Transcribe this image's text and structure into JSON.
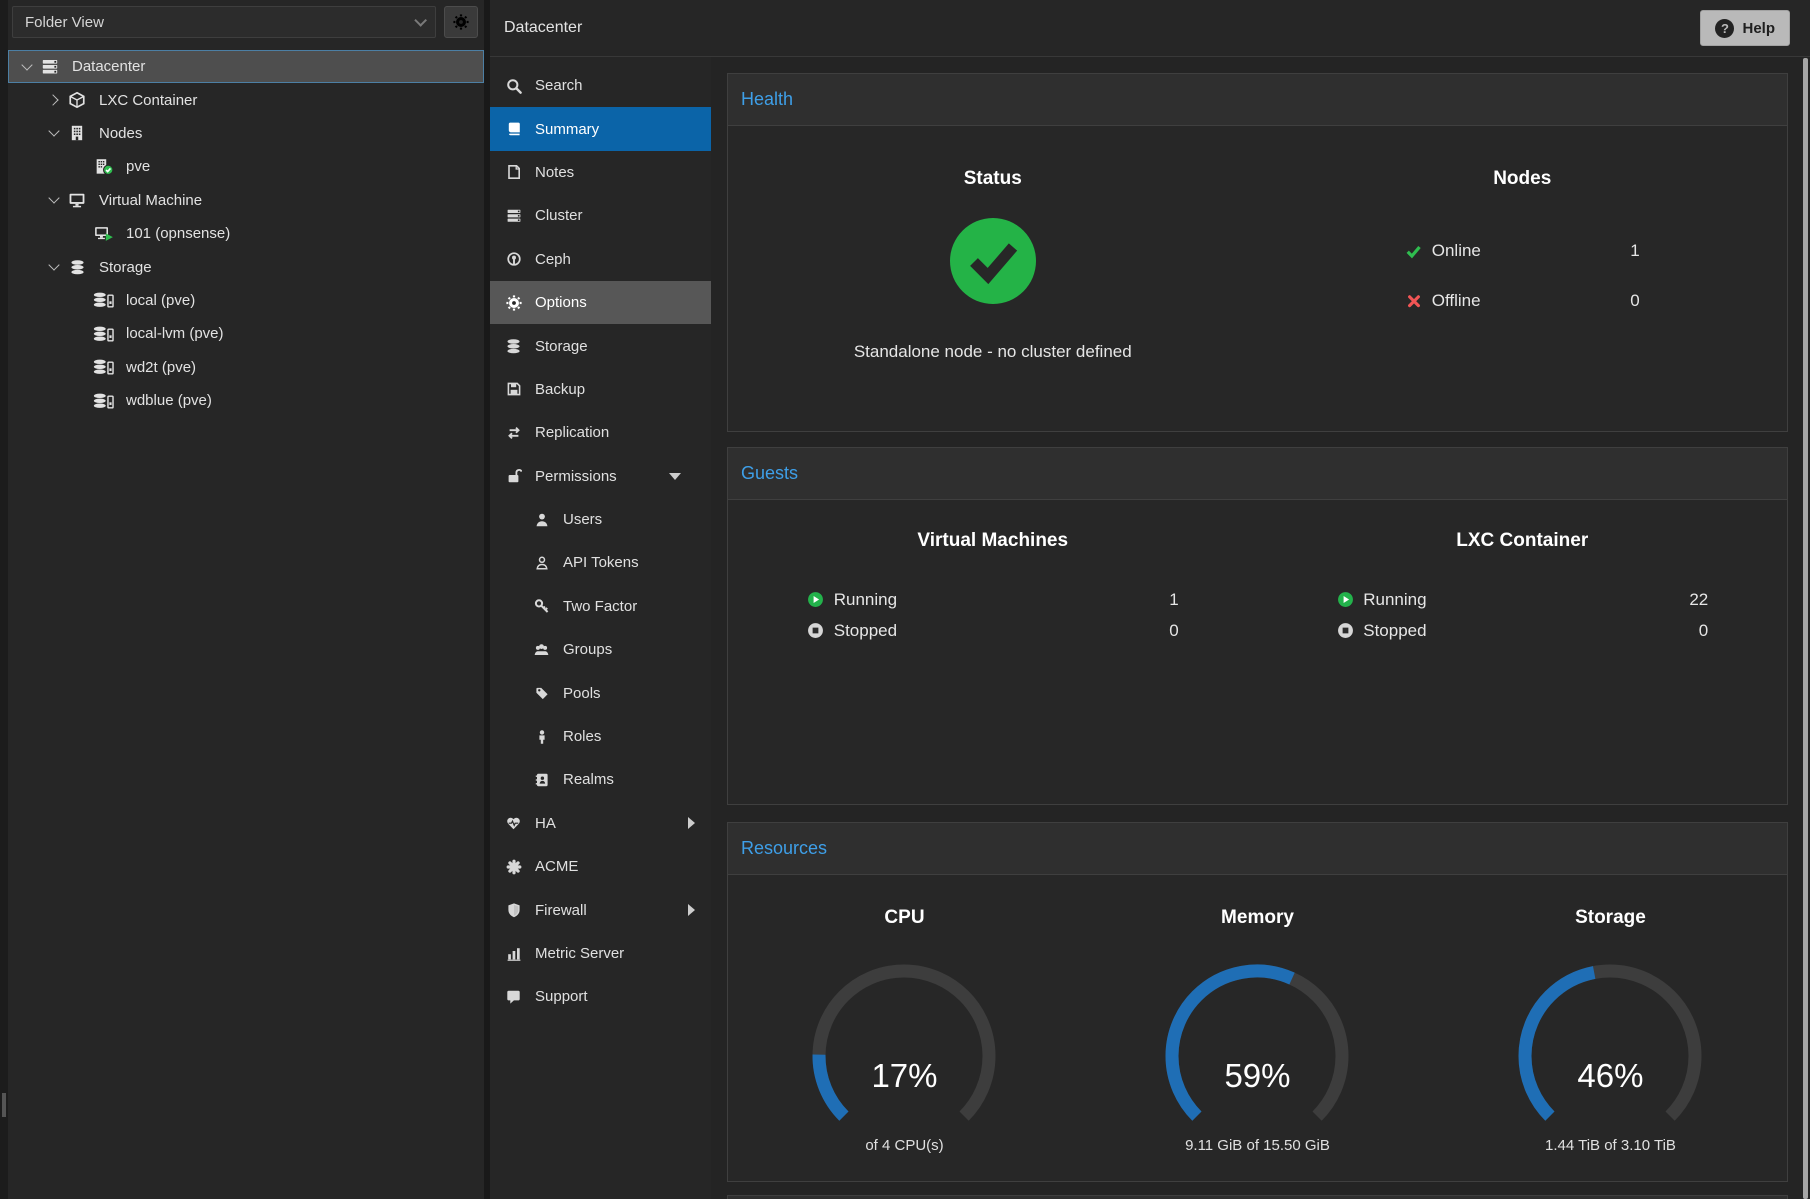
{
  "header": {
    "title": "Datacenter",
    "help_label": "Help"
  },
  "tree": {
    "view_label": "Folder View",
    "items": [
      {
        "label": "Datacenter",
        "icon": "datacenter-icon",
        "depth": 0,
        "caret": "down",
        "selected": true
      },
      {
        "label": "LXC Container",
        "icon": "lxc-cube-icon",
        "depth": 1,
        "caret": "right"
      },
      {
        "label": "Nodes",
        "icon": "building-icon",
        "depth": 1,
        "caret": "down"
      },
      {
        "label": "pve",
        "icon": "node-online-icon",
        "depth": 2
      },
      {
        "label": "Virtual Machine",
        "icon": "monitor-icon",
        "depth": 1,
        "caret": "down"
      },
      {
        "label": "101 (opnsense)",
        "icon": "vm-running-icon",
        "depth": 2
      },
      {
        "label": "Storage",
        "icon": "database-icon",
        "depth": 1,
        "caret": "down"
      },
      {
        "label": "local (pve)",
        "icon": "storage-drive-icon",
        "depth": 2
      },
      {
        "label": "local-lvm (pve)",
        "icon": "storage-drive-icon",
        "depth": 2
      },
      {
        "label": "wd2t (pve)",
        "icon": "storage-drive-icon",
        "depth": 2
      },
      {
        "label": "wdblue (pve)",
        "icon": "storage-drive-icon",
        "depth": 2
      }
    ]
  },
  "menu": {
    "items": [
      {
        "label": "Search",
        "icon": "search-icon"
      },
      {
        "label": "Summary",
        "icon": "book-icon",
        "selected": true
      },
      {
        "label": "Notes",
        "icon": "note-icon"
      },
      {
        "label": "Cluster",
        "icon": "cluster-icon"
      },
      {
        "label": "Ceph",
        "icon": "ceph-icon"
      },
      {
        "label": "Options",
        "icon": "gear-icon",
        "hover": true
      },
      {
        "label": "Storage",
        "icon": "database-icon"
      },
      {
        "label": "Backup",
        "icon": "backup-icon"
      },
      {
        "label": "Replication",
        "icon": "replication-icon"
      },
      {
        "label": "Permissions",
        "icon": "unlock-icon",
        "caret": "down"
      },
      {
        "label": "Users",
        "icon": "user-icon",
        "indent": true
      },
      {
        "label": "API Tokens",
        "icon": "user-outline-icon",
        "indent": true
      },
      {
        "label": "Two Factor",
        "icon": "key-icon",
        "indent": true
      },
      {
        "label": "Groups",
        "icon": "users-group-icon",
        "indent": true
      },
      {
        "label": "Pools",
        "icon": "tag-icon",
        "indent": true
      },
      {
        "label": "Roles",
        "icon": "person-icon",
        "indent": true
      },
      {
        "label": "Realms",
        "icon": "address-book-icon",
        "indent": true
      },
      {
        "label": "HA",
        "icon": "heartbeat-icon",
        "caret": "right"
      },
      {
        "label": "ACME",
        "icon": "flower-icon"
      },
      {
        "label": "Firewall",
        "icon": "shield-icon",
        "caret": "right"
      },
      {
        "label": "Metric Server",
        "icon": "bar-chart-icon"
      },
      {
        "label": "Support",
        "icon": "comment-icon"
      }
    ]
  },
  "health": {
    "title": "Health",
    "status": {
      "heading": "Status",
      "message": "Standalone node - no cluster defined"
    },
    "nodes": {
      "heading": "Nodes",
      "rows": [
        {
          "icon": "check-icon",
          "label": "Online",
          "value": "1"
        },
        {
          "icon": "cross-icon",
          "label": "Offline",
          "value": "0"
        }
      ]
    }
  },
  "guests": {
    "title": "Guests",
    "columns": [
      {
        "heading": "Virtual Machines",
        "rows": [
          {
            "icon": "play-circle-icon",
            "label": "Running",
            "value": "1"
          },
          {
            "icon": "stop-circle-icon",
            "label": "Stopped",
            "value": "0"
          }
        ]
      },
      {
        "heading": "LXC Container",
        "rows": [
          {
            "icon": "play-circle-icon",
            "label": "Running",
            "value": "22"
          },
          {
            "icon": "stop-circle-icon",
            "label": "Stopped",
            "value": "0"
          }
        ]
      }
    ]
  },
  "resources": {
    "title": "Resources",
    "chart_data": {
      "type": "gauge-set",
      "gauges": [
        {
          "name": "CPU",
          "percent": 17,
          "percent_label": "17%",
          "sublabel": "of 4 CPU(s)"
        },
        {
          "name": "Memory",
          "percent": 59,
          "percent_label": "59%",
          "sublabel": "9.11 GiB of 15.50 GiB"
        },
        {
          "name": "Storage",
          "percent": 46,
          "percent_label": "46%",
          "sublabel": "1.44 TiB of 3.10 TiB"
        }
      ]
    }
  },
  "colors": {
    "selection_blue": "#0b64a8",
    "section_title_blue": "#3e9fe8",
    "gauge_fill": "#1f6eb5",
    "gauge_track": "#3d3d3d",
    "ok_green": "#24b347",
    "error_red": "#f15555"
  }
}
